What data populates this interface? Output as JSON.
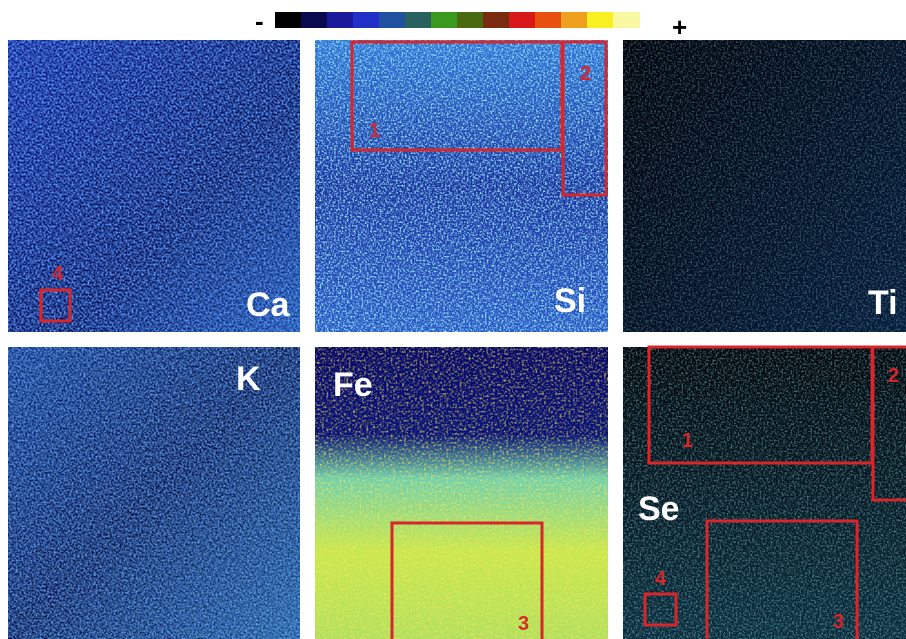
{
  "colorbar": {
    "min_label": "-",
    "max_label": "+"
  },
  "panels": [
    {
      "element": "Ca",
      "regions": [
        "4"
      ]
    },
    {
      "element": "Si",
      "regions": [
        "1",
        "2"
      ]
    },
    {
      "element": "Ti",
      "regions": []
    },
    {
      "element": "K",
      "regions": []
    },
    {
      "element": "Fe",
      "regions": [
        "3"
      ]
    },
    {
      "element": "Se",
      "regions": [
        "1",
        "2",
        "3",
        "4"
      ]
    }
  ]
}
